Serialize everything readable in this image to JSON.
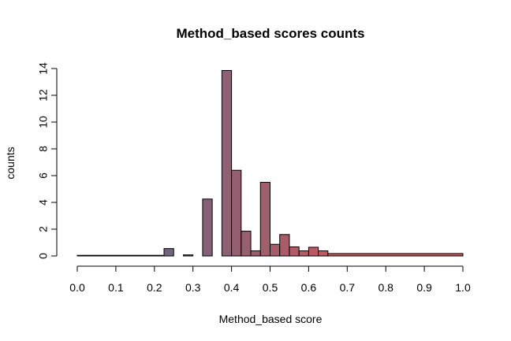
{
  "chart_data": {
    "type": "bar",
    "title": "Method_based scores counts",
    "xlabel": "Method_based score",
    "ylabel": "counts",
    "xlim": [
      0.0,
      1.0
    ],
    "ylim": [
      0,
      14
    ],
    "xticks": [
      "0.0",
      "0.1",
      "0.2",
      "0.3",
      "0.4",
      "0.5",
      "0.6",
      "0.7",
      "0.8",
      "0.9",
      "1.0"
    ],
    "yticks": [
      "0",
      "2",
      "4",
      "6",
      "8",
      "10",
      "12",
      "14"
    ],
    "grid": false,
    "bars": [
      {
        "x0": 0.0,
        "x1": 0.225,
        "value": 0.0
      },
      {
        "x0": 0.225,
        "x1": 0.25,
        "value": 0.55
      },
      {
        "x0": 0.275,
        "x1": 0.3,
        "value": 0.08
      },
      {
        "x0": 0.325,
        "x1": 0.35,
        "value": 4.25
      },
      {
        "x0": 0.375,
        "x1": 0.4,
        "value": 13.85
      },
      {
        "x0": 0.4,
        "x1": 0.425,
        "value": 6.4
      },
      {
        "x0": 0.425,
        "x1": 0.45,
        "value": 1.85
      },
      {
        "x0": 0.45,
        "x1": 0.475,
        "value": 0.38
      },
      {
        "x0": 0.475,
        "x1": 0.5,
        "value": 5.5
      },
      {
        "x0": 0.5,
        "x1": 0.525,
        "value": 0.87
      },
      {
        "x0": 0.525,
        "x1": 0.55,
        "value": 1.6
      },
      {
        "x0": 0.55,
        "x1": 0.575,
        "value": 0.68
      },
      {
        "x0": 0.575,
        "x1": 0.6,
        "value": 0.38
      },
      {
        "x0": 0.6,
        "x1": 0.625,
        "value": 0.65
      },
      {
        "x0": 0.625,
        "x1": 0.65,
        "value": 0.38
      },
      {
        "x0": 0.65,
        "x1": 1.0,
        "value": 0.18
      }
    ],
    "color_low": "#6b6580",
    "color_high": "#c9585c"
  }
}
